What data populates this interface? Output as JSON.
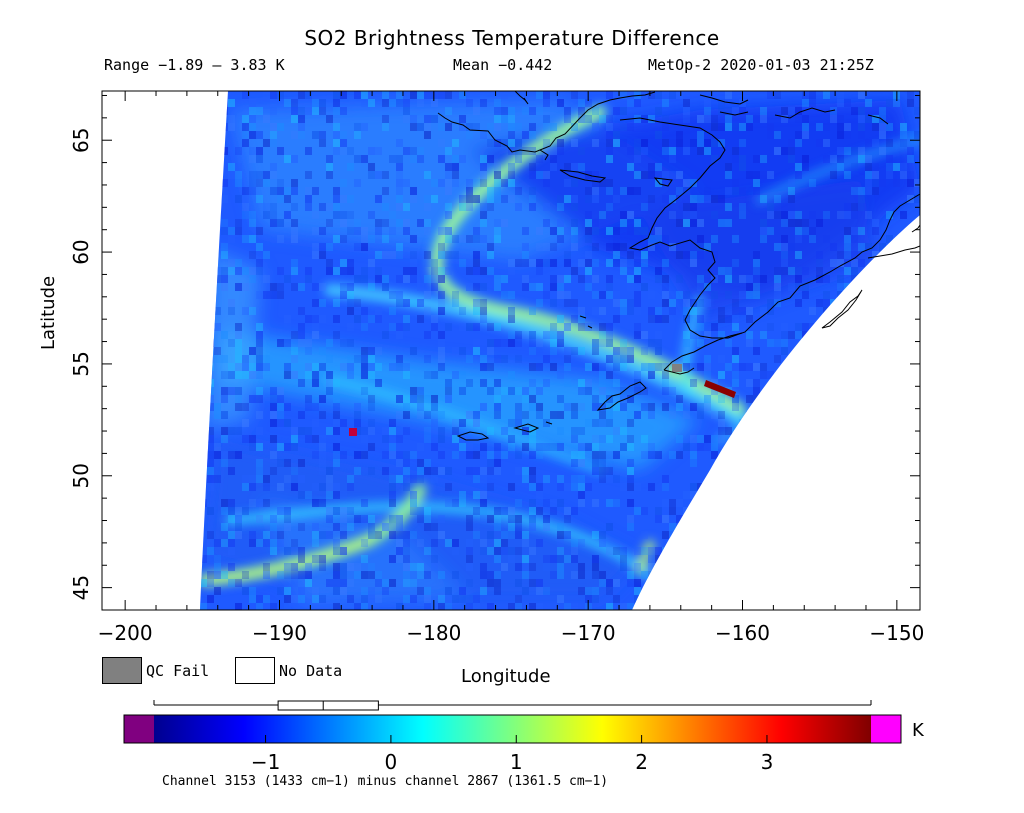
{
  "title": "SO2 Brightness Temperature Difference",
  "header": {
    "range": "Range −1.89 – 3.83 K",
    "mean": "Mean −0.442",
    "satellite_time": "MetOp-2 2020-01-03 21:25Z"
  },
  "map": {
    "xlabel": "Longitude",
    "ylabel": "Latitude",
    "x_ticks": [
      "−200",
      "−190",
      "−180",
      "−170",
      "−160",
      "−150"
    ],
    "y_ticks": [
      "45",
      "50",
      "55",
      "60",
      "65"
    ],
    "lon_range": [
      -201.5,
      -148.5
    ],
    "lat_range": [
      44,
      67.2
    ]
  },
  "legend": {
    "qc_fail": "QC Fail",
    "no_data": "No Data",
    "qc_fail_color": "#808080"
  },
  "colorbar": {
    "unit": "K",
    "ticks": [
      "−1",
      "0",
      "1",
      "2",
      "3"
    ],
    "min": -1.89,
    "max": 3.83,
    "boxplot": {
      "whisker_low": -1.89,
      "q1": -0.9,
      "median": -0.54,
      "q3": -0.1,
      "whisker_high": 3.83
    },
    "under_color": "#800080",
    "over_color": "#ff00ff"
  },
  "footnote": "Channel 3153 (1433 cm−1) minus channel 2867 (1361.5 cm−1)"
}
